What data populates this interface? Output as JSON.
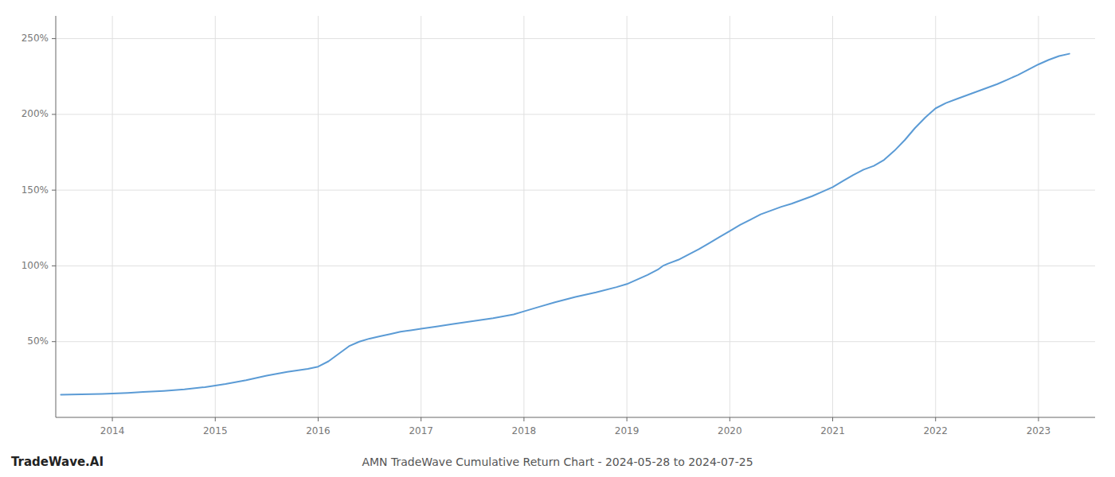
{
  "chart_data": {
    "type": "line",
    "title": "AMN TradeWave Cumulative Return Chart - 2024-05-28 to 2024-07-25",
    "annotations": [
      "TradeWave.AI"
    ],
    "color": "#5b9bd5",
    "grid": true,
    "x": [
      2013.5,
      2013.7,
      2013.9,
      2014.0,
      2014.15,
      2014.3,
      2014.5,
      2014.7,
      2014.9,
      2015.1,
      2015.3,
      2015.5,
      2015.7,
      2015.9,
      2016.0,
      2016.1,
      2016.2,
      2016.3,
      2016.4,
      2016.5,
      2016.6,
      2016.7,
      2016.8,
      2016.9,
      2017.0,
      2017.15,
      2017.3,
      2017.5,
      2017.7,
      2017.9,
      2018.0,
      2018.15,
      2018.3,
      2018.5,
      2018.7,
      2018.9,
      2019.0,
      2019.1,
      2019.2,
      2019.3,
      2019.35,
      2019.4,
      2019.5,
      2019.6,
      2019.7,
      2019.8,
      2019.9,
      2020.0,
      2020.1,
      2020.2,
      2020.3,
      2020.4,
      2020.5,
      2020.6,
      2020.7,
      2020.8,
      2020.9,
      2021.0,
      2021.1,
      2021.2,
      2021.3,
      2021.4,
      2021.5,
      2021.6,
      2021.7,
      2021.8,
      2021.9,
      2022.0,
      2022.1,
      2022.2,
      2022.3,
      2022.4,
      2022.5,
      2022.6,
      2022.7,
      2022.8,
      2022.9,
      2023.0,
      2023.1,
      2023.2,
      2023.3
    ],
    "values": [
      15.0,
      15.2,
      15.5,
      15.8,
      16.2,
      16.8,
      17.5,
      18.5,
      20.0,
      22.0,
      24.5,
      27.5,
      30.0,
      32.0,
      33.5,
      37.0,
      42.0,
      47.0,
      50.0,
      52.0,
      53.5,
      55.0,
      56.5,
      57.5,
      58.5,
      60.0,
      61.5,
      63.5,
      65.5,
      68.0,
      70.0,
      73.0,
      76.0,
      79.5,
      82.5,
      86.0,
      88.0,
      91.0,
      94.0,
      97.5,
      100.0,
      101.5,
      104.0,
      107.5,
      111.0,
      115.0,
      119.0,
      123.0,
      127.0,
      130.5,
      134.0,
      136.5,
      139.0,
      141.0,
      143.5,
      146.0,
      149.0,
      152.0,
      156.0,
      160.0,
      163.5,
      166.0,
      170.0,
      176.0,
      183.0,
      191.0,
      198.0,
      204.0,
      207.5,
      210.0,
      212.5,
      215.0,
      217.5,
      220.0,
      223.0,
      226.0,
      229.5,
      233.0,
      236.0,
      238.5,
      240.0
    ],
    "xlim": [
      2013.45,
      2023.55
    ],
    "xticks": [
      2014,
      2015,
      2016,
      2017,
      2018,
      2019,
      2020,
      2021,
      2022,
      2023
    ],
    "ylim": [
      0,
      265
    ],
    "yticks": [
      {
        "value": 50,
        "label": "50%"
      },
      {
        "value": 100,
        "label": "100%"
      },
      {
        "value": 150,
        "label": "150%"
      },
      {
        "value": 200,
        "label": "200%"
      },
      {
        "value": 250,
        "label": "250%"
      }
    ]
  }
}
